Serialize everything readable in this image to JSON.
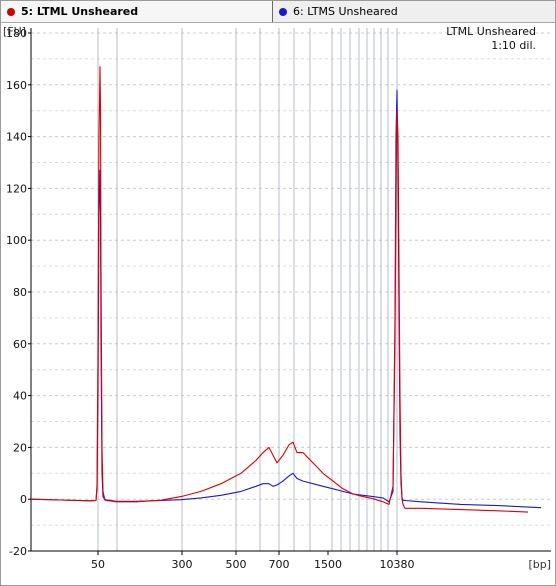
{
  "tabs": [
    {
      "label": "5: LTML Unsheared",
      "color": "#cc0000",
      "active": true
    },
    {
      "label": "6: LTMS Unsheared",
      "color": "#1a1acc",
      "active": false
    }
  ],
  "chart_data": {
    "type": "line",
    "ylabel": "[FU]",
    "xlabel": "[bp]",
    "ylim": [
      -20,
      180
    ],
    "yticks": [
      -20,
      0,
      20,
      40,
      60,
      80,
      100,
      120,
      140,
      160,
      180
    ],
    "xtick_labels": [
      "50",
      "300",
      "500",
      "700",
      "1500",
      "10380"
    ],
    "annotation": [
      "LTML Unsheared",
      "1:10 dil."
    ],
    "grid": true,
    "series": [
      {
        "name": "5: LTML Unsheared",
        "color": "#dd0000",
        "points": [
          [
            30,
            0
          ],
          [
            60,
            -0.3
          ],
          [
            90,
            -0.6
          ],
          [
            95,
            -0.5
          ],
          [
            96,
            5
          ],
          [
            97,
            60
          ],
          [
            98,
            140
          ],
          [
            99,
            167
          ],
          [
            99.5,
            150
          ],
          [
            100,
            90
          ],
          [
            101,
            20
          ],
          [
            102,
            3
          ],
          [
            104,
            -0.4
          ],
          [
            115,
            -1
          ],
          [
            135,
            -1
          ],
          [
            160,
            -0.4
          ],
          [
            180,
            1
          ],
          [
            200,
            3
          ],
          [
            220,
            6
          ],
          [
            240,
            10
          ],
          [
            255,
            15
          ],
          [
            262,
            18
          ],
          [
            268,
            20
          ],
          [
            272,
            17
          ],
          [
            276,
            14
          ],
          [
            282,
            17
          ],
          [
            288,
            21
          ],
          [
            292,
            22
          ],
          [
            296,
            18
          ],
          [
            302,
            18
          ],
          [
            312,
            14
          ],
          [
            322,
            10
          ],
          [
            332,
            7
          ],
          [
            342,
            4
          ],
          [
            352,
            2
          ],
          [
            362,
            1
          ],
          [
            372,
            0.2
          ],
          [
            382,
            -1
          ],
          [
            388,
            -2
          ],
          [
            392,
            5
          ],
          [
            394,
            60
          ],
          [
            395,
            120
          ],
          [
            396,
            150
          ],
          [
            397,
            140
          ],
          [
            398,
            90
          ],
          [
            399,
            40
          ],
          [
            400,
            10
          ],
          [
            401,
            0
          ],
          [
            402,
            -2
          ],
          [
            404,
            -3.5
          ],
          [
            420,
            -3.5
          ],
          [
            460,
            -4
          ],
          [
            500,
            -4.5
          ],
          [
            527,
            -5
          ]
        ]
      },
      {
        "name": "6: LTMS Unsheared",
        "color": "#1a1acc",
        "points": [
          [
            30,
            0
          ],
          [
            60,
            -0.3
          ],
          [
            90,
            -0.6
          ],
          [
            95,
            -0.5
          ],
          [
            96,
            5
          ],
          [
            97,
            40
          ],
          [
            98,
            110
          ],
          [
            99,
            127
          ],
          [
            99.5,
            110
          ],
          [
            100,
            60
          ],
          [
            101,
            10
          ],
          [
            102,
            1
          ],
          [
            104,
            -0.2
          ],
          [
            115,
            -0.8
          ],
          [
            135,
            -0.8
          ],
          [
            160,
            -0.5
          ],
          [
            180,
            -0.2
          ],
          [
            200,
            0.5
          ],
          [
            220,
            1.5
          ],
          [
            240,
            3
          ],
          [
            255,
            5
          ],
          [
            262,
            6
          ],
          [
            268,
            6
          ],
          [
            272,
            5
          ],
          [
            276,
            5.5
          ],
          [
            282,
            7
          ],
          [
            288,
            9
          ],
          [
            292,
            10
          ],
          [
            296,
            8
          ],
          [
            302,
            7
          ],
          [
            312,
            6
          ],
          [
            322,
            5
          ],
          [
            332,
            4
          ],
          [
            342,
            3
          ],
          [
            352,
            2
          ],
          [
            362,
            1.5
          ],
          [
            372,
            1
          ],
          [
            382,
            0.5
          ],
          [
            388,
            -1
          ],
          [
            392,
            3
          ],
          [
            394,
            70
          ],
          [
            395,
            140
          ],
          [
            396,
            158
          ],
          [
            397,
            130
          ],
          [
            398,
            70
          ],
          [
            399,
            25
          ],
          [
            400,
            6
          ],
          [
            401,
            0.8
          ],
          [
            402,
            -0.5
          ],
          [
            404,
            -0.5
          ],
          [
            420,
            -1
          ],
          [
            460,
            -2
          ],
          [
            500,
            -2.5
          ],
          [
            540,
            -3.3
          ]
        ]
      }
    ]
  }
}
